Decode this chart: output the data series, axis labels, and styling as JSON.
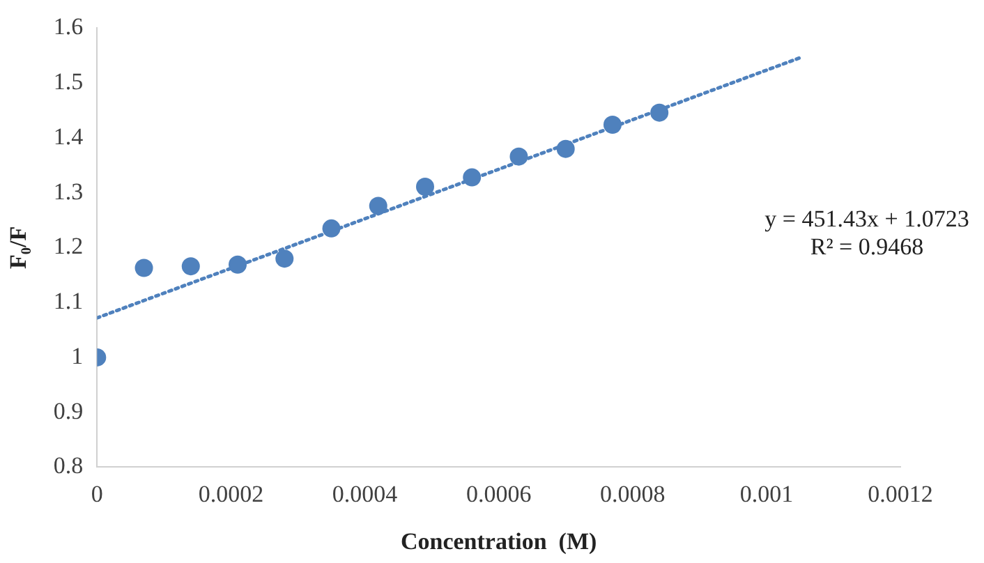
{
  "chart_data": {
    "type": "scatter",
    "xlabel": "Concentration  (M)",
    "ylabel": "F₀/F",
    "xlim": [
      0,
      0.0012
    ],
    "xticks": [
      0,
      0.0002,
      0.0004,
      0.0006,
      0.0008,
      0.001,
      0.0012
    ],
    "ylim": [
      0.8,
      1.6
    ],
    "yticks": [
      0.8,
      0.9,
      1,
      1.1,
      1.2,
      1.3,
      1.4,
      1.5,
      1.6
    ],
    "marker": "circle",
    "series": [
      {
        "color": "#4f81bd",
        "x": [
          0,
          7e-05,
          0.00014,
          0.00021,
          0.00028,
          0.00035,
          0.00042,
          0.00049,
          0.00056,
          0.00063,
          0.0007,
          0.00077,
          0.00084
        ],
        "values": [
          1.0,
          1.163,
          1.166,
          1.169,
          1.18,
          1.235,
          1.276,
          1.311,
          1.328,
          1.366,
          1.38,
          1.424,
          1.446
        ]
      },
      {
        "type": "line",
        "color": "#4f81bd",
        "line_style": "dotted",
        "marker": "none",
        "x": [
          0,
          0.00105
        ],
        "values": [
          1.072,
          1.546
        ]
      }
    ],
    "annotations": [
      "y = 451.43x + 1.0723",
      "R² = 0.9468"
    ]
  }
}
